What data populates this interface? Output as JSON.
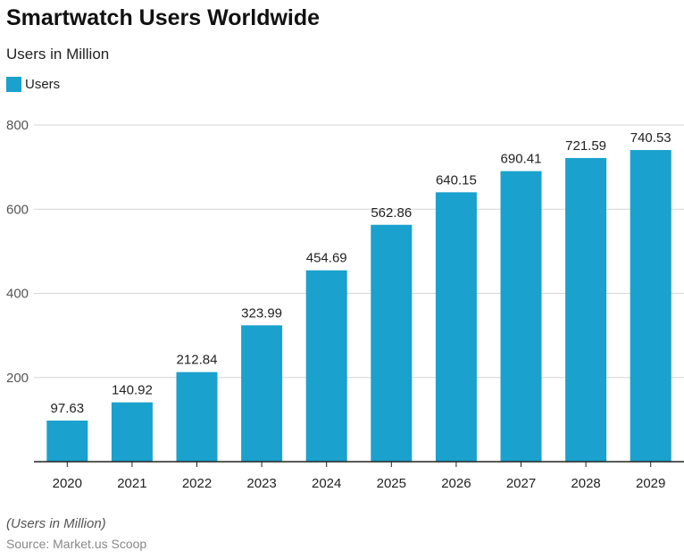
{
  "title": "Smartwatch Users Worldwide",
  "subtitle": "Users in Million",
  "note": "(Users in Million)",
  "source": "Source: Market.us Scoop",
  "colors": {
    "bar": "#1aa1cd"
  },
  "chart_data": {
    "type": "bar",
    "categories": [
      "2020",
      "2021",
      "2022",
      "2023",
      "2024",
      "2025",
      "2026",
      "2027",
      "2028",
      "2029"
    ],
    "series": [
      {
        "name": "Users",
        "values": [
          97.63,
          140.92,
          212.84,
          323.99,
          454.69,
          562.86,
          640.15,
          690.41,
          721.59,
          740.53
        ]
      }
    ],
    "yticks": [
      200,
      400,
      600,
      800
    ],
    "ylim": [
      0,
      800
    ],
    "grid": true,
    "legend": "top-left",
    "data_labels": true
  }
}
